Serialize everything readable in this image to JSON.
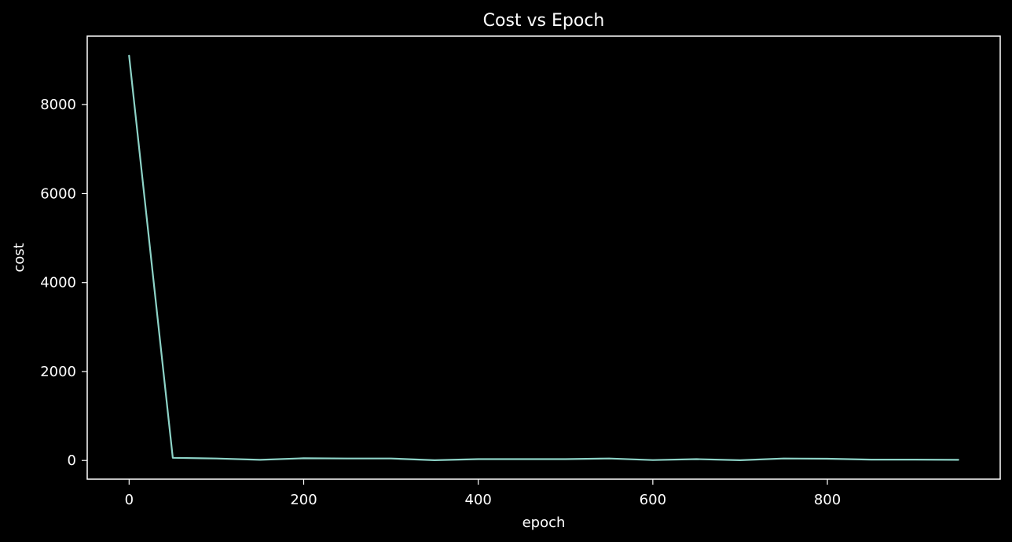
{
  "chart_data": {
    "type": "line",
    "title": "Cost vs Epoch",
    "xlabel": "epoch",
    "ylabel": "cost",
    "xlim": [
      -48,
      998
    ],
    "ylim": [
      -420,
      9540
    ],
    "xticks": [
      0,
      200,
      400,
      600,
      800
    ],
    "yticks": [
      0,
      2000,
      4000,
      6000,
      8000
    ],
    "grid": false,
    "series": [
      {
        "color": "#8dd3c7",
        "x": [
          0,
          50,
          100,
          150,
          200,
          250,
          300,
          350,
          400,
          450,
          500,
          550,
          600,
          650,
          700,
          750,
          800,
          850,
          900,
          950
        ],
        "y": [
          9100,
          60,
          45,
          15,
          50,
          45,
          45,
          5,
          30,
          30,
          30,
          45,
          10,
          30,
          5,
          45,
          40,
          20,
          20,
          15
        ]
      }
    ]
  }
}
